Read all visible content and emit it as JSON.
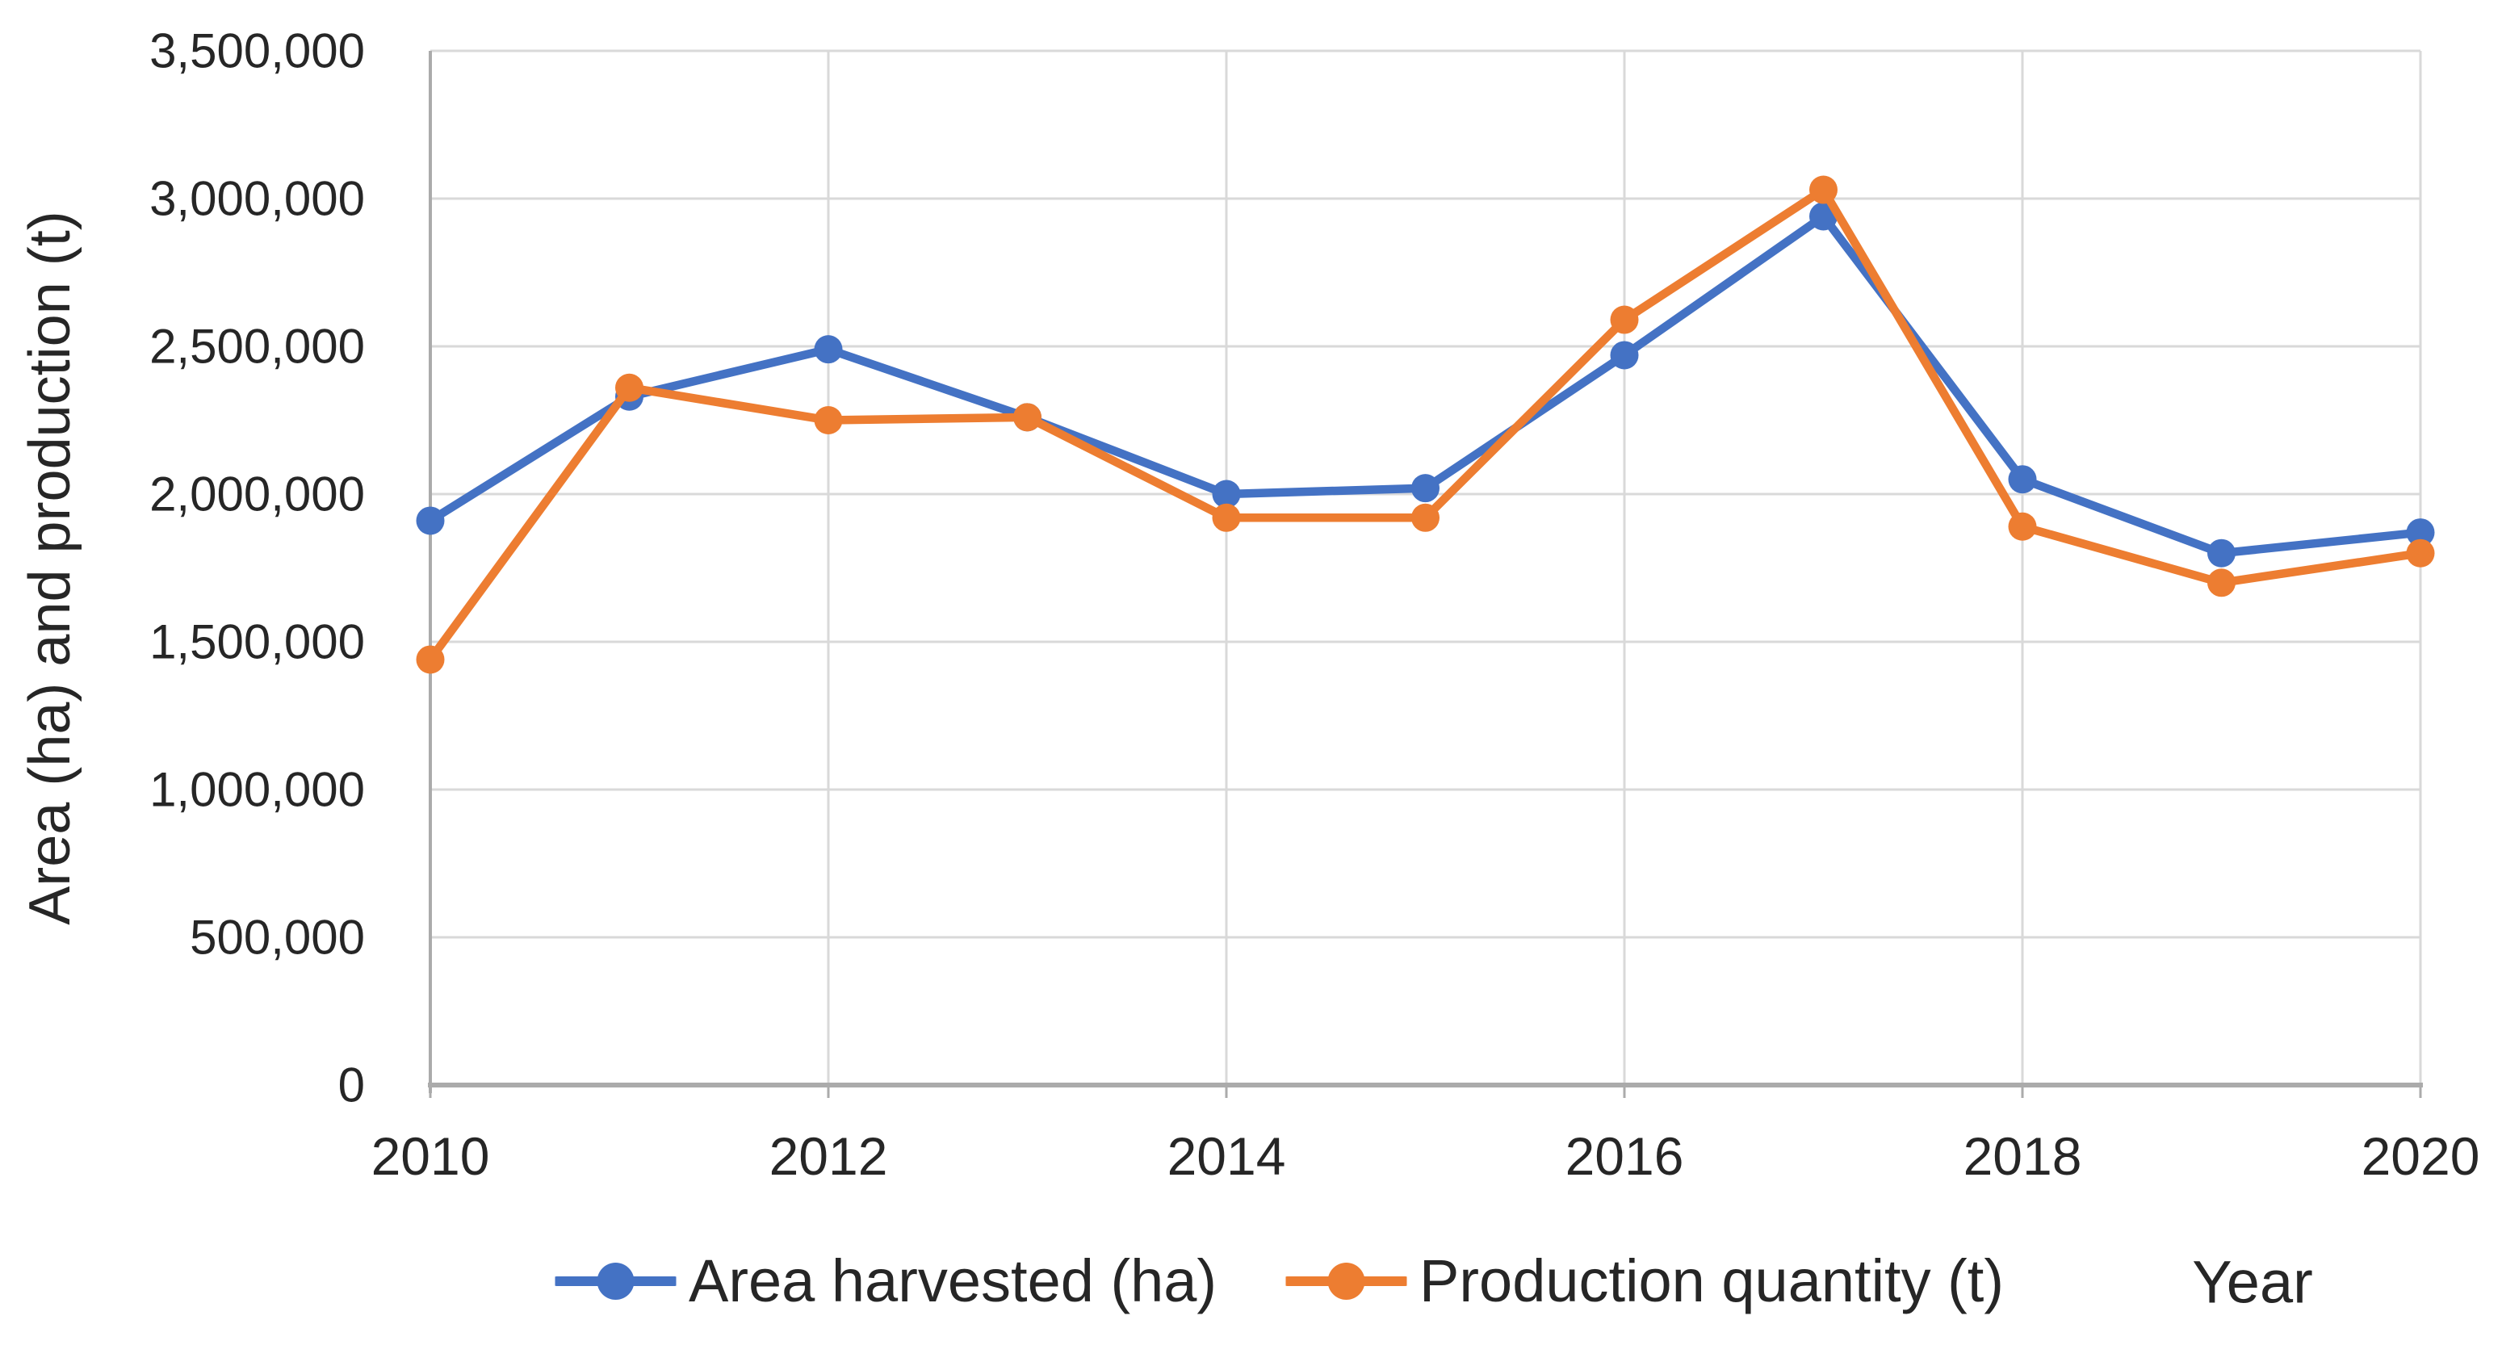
{
  "chart_data": {
    "type": "line",
    "title": "",
    "x": [
      2010,
      2011,
      2012,
      2013,
      2014,
      2015,
      2016,
      2017,
      2018,
      2019,
      2020
    ],
    "series": [
      {
        "name": "Area harvested (ha)",
        "color": "#4472C4",
        "values": [
          1910000,
          2330000,
          2490000,
          2260000,
          2000000,
          2020000,
          2470000,
          2940000,
          2050000,
          1800000,
          1870000
        ]
      },
      {
        "name": "Production quantity (t)",
        "color": "#ED7D31",
        "values": [
          1440000,
          2360000,
          2250000,
          2260000,
          1920000,
          1920000,
          2590000,
          3030000,
          1890000,
          1700000,
          1800000
        ]
      }
    ],
    "xlabel": "Year",
    "ylabel": "Area (ha) and production (t)",
    "ylim": [
      0,
      3500000
    ],
    "yticks": [
      0,
      500000,
      1000000,
      1500000,
      2000000,
      2500000,
      3000000,
      3500000
    ],
    "ytick_labels": [
      "0",
      "500,000",
      "1,000,000",
      "1,500,000",
      "2,000,000",
      "2,500,000",
      "3,000,000",
      "3,500,000"
    ],
    "xticks": [
      2010,
      2012,
      2014,
      2016,
      2018,
      2020
    ],
    "xtick_labels": [
      "2010",
      "2012",
      "2014",
      "2016",
      "2018",
      "2020"
    ],
    "grid": "horizontal every 500,000; vertical at even years",
    "legend_position": "bottom-center",
    "colors": {
      "gridline": "#D9D9D9",
      "axis": "#ABABAB",
      "text": "#262626"
    }
  }
}
